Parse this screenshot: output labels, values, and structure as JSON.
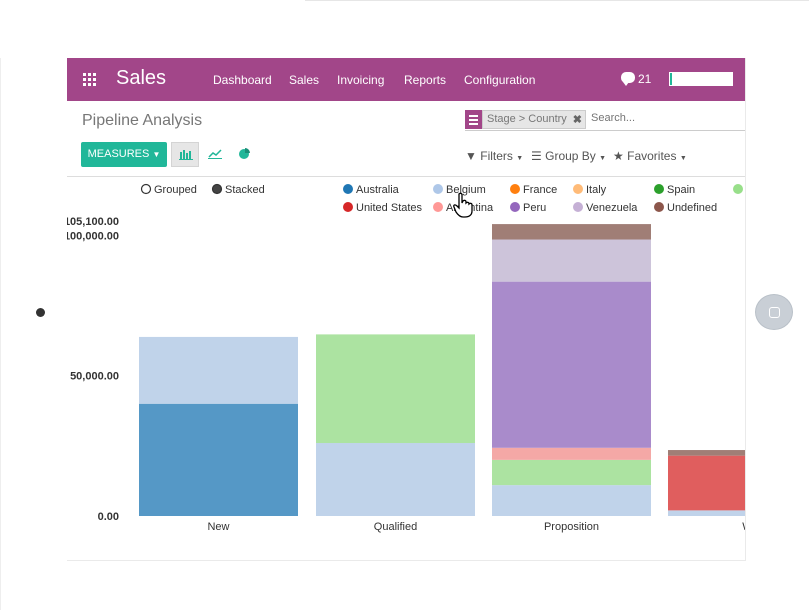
{
  "navbar": {
    "app_title": "Sales",
    "menu": [
      "Dashboard",
      "Sales",
      "Invoicing",
      "Reports",
      "Configuration"
    ],
    "message_count": "21",
    "progress_fraction": 0.04,
    "color": "#a24689"
  },
  "page": {
    "title": "Pipeline Analysis"
  },
  "search": {
    "facet_label": "Stage > Country",
    "placeholder": "Search..."
  },
  "toolbar": {
    "measures_label": "MEASURES",
    "views": [
      "bar-chart-icon",
      "line-chart-icon",
      "pie-chart-icon"
    ],
    "active_view": "bar-chart-icon",
    "filters_label": "Filters",
    "groupby_label": "Group By",
    "favorites_label": "Favorites",
    "accent": "#21b799"
  },
  "chart_data": {
    "type": "bar",
    "mode_options": [
      {
        "label": "Grouped",
        "selected": false
      },
      {
        "label": "Stacked",
        "selected": true
      }
    ],
    "categories": [
      "New",
      "Qualified",
      "Proposition",
      "W"
    ],
    "ylim": [
      0,
      105100
    ],
    "y_ticks": [
      {
        "value": 0,
        "label": "0.00"
      },
      {
        "value": 50000,
        "label": "50,000.00"
      },
      {
        "value": 100000,
        "label": "100,000.00"
      },
      {
        "value": 105100,
        "label": "105,100.00"
      }
    ],
    "series": [
      {
        "name": "Australia",
        "color": "#5598c6",
        "values": [
          40000,
          0,
          0,
          0
        ]
      },
      {
        "name": "Belgium",
        "color": "#c0d3ea",
        "values": [
          23800,
          26000,
          11000,
          2000
        ]
      },
      {
        "name": "France",
        "color": "#ff7f0e",
        "values": [
          0,
          0,
          0,
          0
        ]
      },
      {
        "name": "Italy",
        "color": "#ffbb78",
        "values": [
          0,
          0,
          0,
          0
        ]
      },
      {
        "name": "Spain",
        "color": "#2ca02c",
        "values": [
          0,
          0,
          0,
          0
        ]
      },
      {
        "name": "",
        "color": "#ace3a1",
        "values": [
          0,
          38700,
          9000,
          0
        ]
      },
      {
        "name": "United States",
        "color": "#d62728",
        "values": [
          0,
          0,
          0,
          0
        ]
      },
      {
        "name": "Argentina",
        "color": "#f4a8a6",
        "values": [
          0,
          0,
          4300,
          0
        ]
      },
      {
        "name": "Peru",
        "color": "#a98bcb",
        "values": [
          0,
          0,
          59200,
          0
        ]
      },
      {
        "name": "Venezuela",
        "color": "#cdc4da",
        "values": [
          0,
          0,
          15000,
          0
        ]
      },
      {
        "name": "Undefined",
        "color": "#a07e76",
        "values": [
          0,
          0,
          5500,
          0
        ]
      },
      {
        "name": "",
        "color": "#e05e5e",
        "values": [
          0,
          0,
          0,
          19500
        ]
      },
      {
        "name": "",
        "color": "#a07e76",
        "values": [
          0,
          0,
          0,
          2000
        ]
      }
    ],
    "legend": [
      {
        "name": "Australia",
        "color": "#1f77b4"
      },
      {
        "name": "Belgium",
        "color": "#aec7e8"
      },
      {
        "name": "France",
        "color": "#ff7f0e"
      },
      {
        "name": "Italy",
        "color": "#ffbb78"
      },
      {
        "name": "Spain",
        "color": "#2ca02c"
      },
      {
        "name": "",
        "color": "#98df8a"
      },
      {
        "name": "United States",
        "color": "#d62728"
      },
      {
        "name": "Argentina",
        "color": "#ff9896"
      },
      {
        "name": "Peru",
        "color": "#9467bd"
      },
      {
        "name": "Venezuela",
        "color": "#c5b0d5"
      },
      {
        "name": "Undefined",
        "color": "#8c564b"
      }
    ]
  }
}
